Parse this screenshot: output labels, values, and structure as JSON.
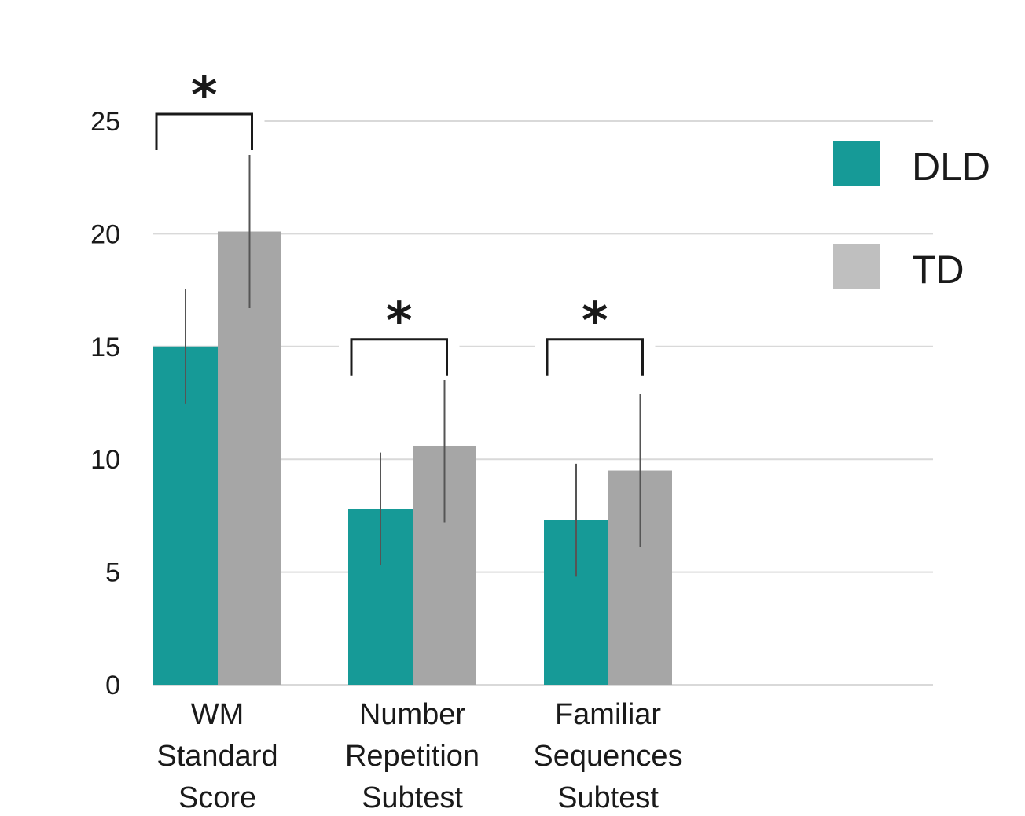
{
  "chart_data": {
    "type": "bar",
    "title": "",
    "xlabel": "",
    "ylabel": "",
    "ylim": [
      0,
      25
    ],
    "yticks": [
      0,
      5,
      10,
      15,
      20,
      25
    ],
    "grid": true,
    "legend_position": "top-right",
    "categories": [
      [
        "WM",
        "Standard",
        "Score"
      ],
      [
        "Number",
        "Repetition",
        "Subtest"
      ],
      [
        "Familiar",
        "Sequences",
        "Subtest"
      ]
    ],
    "series": [
      {
        "name": "DLD",
        "color": "#169a97",
        "values": [
          15.0,
          7.8,
          7.3
        ],
        "error": [
          2.55,
          2.5,
          2.5
        ]
      },
      {
        "name": "TD",
        "color": "#a6a6a6",
        "legend_color": "#bfbfbf",
        "values": [
          20.1,
          10.6,
          9.5
        ],
        "error": [
          3.4,
          3.4,
          3.4
        ]
      }
    ],
    "significance": [
      {
        "category_index": 0,
        "label": "*",
        "bracket_y": 25.0
      },
      {
        "category_index": 1,
        "label": "*",
        "bracket_y": 15.0
      },
      {
        "category_index": 2,
        "label": "*",
        "bracket_y": 15.0
      }
    ]
  }
}
